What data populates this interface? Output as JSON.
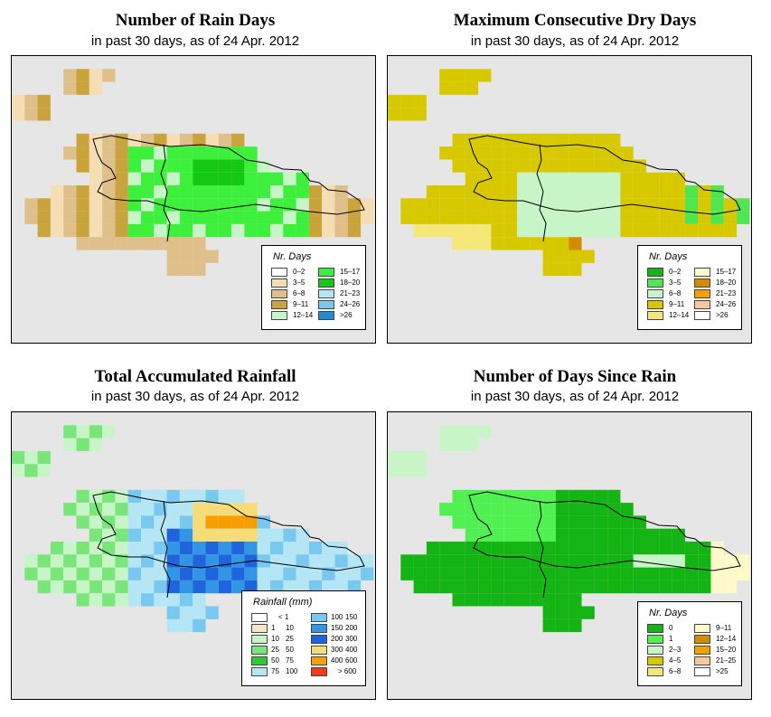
{
  "maps": [
    {
      "title": "Number of Rain Days",
      "subtitle": "in past 30 days, as of  24 Apr. 2012",
      "legend_title": "Nr. Days",
      "legend": [
        {
          "label": "0–2",
          "color": "#ffffff"
        },
        {
          "label": "3–5",
          "color": "#f5deb3"
        },
        {
          "label": "6–8",
          "color": "#dfc08a"
        },
        {
          "label": "9–11",
          "color": "#c9a43c"
        },
        {
          "label": "12–14",
          "color": "#c8f5c8"
        },
        {
          "label": "15–17",
          "color": "#3cf03c"
        },
        {
          "label": "18–20",
          "color": "#14c814"
        },
        {
          "label": "21–23",
          "color": "#b4e6f5"
        },
        {
          "label": "24–26",
          "color": "#78c8f0"
        },
        {
          "label": ">26",
          "color": "#1e8cd2"
        }
      ]
    },
    {
      "title": "Maximum Consecutive Dry Days",
      "subtitle": "in past 30 days, as of  24 Apr. 2012",
      "legend_title": "Nr. Days",
      "legend": [
        {
          "label": "0–2",
          "color": "#14b414"
        },
        {
          "label": "3–5",
          "color": "#50e650"
        },
        {
          "label": "6–8",
          "color": "#c8f5c8"
        },
        {
          "label": "9–11",
          "color": "#d7c800"
        },
        {
          "label": "12–14",
          "color": "#f5e678"
        },
        {
          "label": "15–17",
          "color": "#fffac8"
        },
        {
          "label": "18–20",
          "color": "#d28c00"
        },
        {
          "label": "21–23",
          "color": "#f5a000"
        },
        {
          "label": "24–26",
          "color": "#f5c8a0"
        },
        {
          "label": ">26",
          "color": "#ffffff"
        }
      ]
    },
    {
      "title": "Total Accumulated Rainfall",
      "subtitle": "in past 30 days, as of  24 Apr. 2012",
      "legend_title": "Rainfall (mm)",
      "legend": [
        {
          "lo": "",
          "hi": "< 1",
          "color": "#ffffff"
        },
        {
          "lo": "1",
          "hi": "10",
          "color": "#f5e6c8"
        },
        {
          "lo": "10",
          "hi": "25",
          "color": "#c8f5c8"
        },
        {
          "lo": "25",
          "hi": "50",
          "color": "#78e678"
        },
        {
          "lo": "50",
          "hi": "75",
          "color": "#32c832"
        },
        {
          "lo": "75",
          "hi": "100",
          "color": "#b4e6f5"
        },
        {
          "lo": "100",
          "hi": "150",
          "color": "#78c8f0"
        },
        {
          "lo": "150",
          "hi": "200",
          "color": "#3296e6"
        },
        {
          "lo": "200",
          "hi": "300",
          "color": "#1e64dc"
        },
        {
          "lo": "300",
          "hi": "400",
          "color": "#f5dc78"
        },
        {
          "lo": "400",
          "hi": "600",
          "color": "#f5a000"
        },
        {
          "lo": "",
          "hi": "> 600",
          "color": "#f03c14"
        }
      ]
    },
    {
      "title": "Number of Days Since Rain",
      "subtitle": "in past 30 days, as of  24 Apr. 2012",
      "legend_title": "Nr. Days",
      "legend": [
        {
          "label": "0",
          "color": "#14b414"
        },
        {
          "label": "1",
          "color": "#50f050"
        },
        {
          "label": "2–3",
          "color": "#c8f5c8"
        },
        {
          "label": "4–5",
          "color": "#d7c800"
        },
        {
          "label": "6–8",
          "color": "#f5e678"
        },
        {
          "label": "9–11",
          "color": "#fffac8"
        },
        {
          "label": "12–14",
          "color": "#d28c00"
        },
        {
          "label": "15–20",
          "color": "#f5a000"
        },
        {
          "label": "21–25",
          "color": "#f5c8a0"
        },
        {
          "label": ">25",
          "color": "#ffffff"
        }
      ]
    }
  ]
}
